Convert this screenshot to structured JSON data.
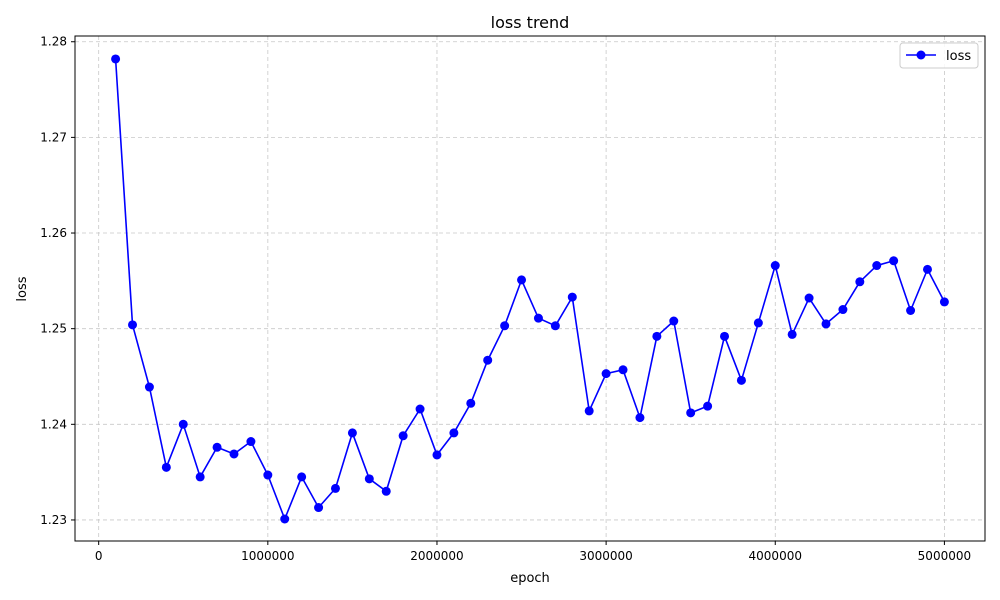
{
  "chart_data": {
    "type": "line",
    "title": "loss trend",
    "xlabel": "epoch",
    "ylabel": "loss",
    "xlim": [
      -140000,
      5240000
    ],
    "ylim": [
      1.2278,
      1.2806
    ],
    "xticks": [
      0,
      1000000,
      2000000,
      3000000,
      4000000,
      5000000
    ],
    "xtick_labels": [
      "0",
      "1000000",
      "2000000",
      "3000000",
      "4000000",
      "5000000"
    ],
    "yticks": [
      1.23,
      1.24,
      1.25,
      1.26,
      1.27,
      1.28
    ],
    "ytick_labels": [
      "1.23",
      "1.24",
      "1.25",
      "1.26",
      "1.27",
      "1.28"
    ],
    "grid": true,
    "legend_position": "top-right",
    "colors": {
      "series": "#0000ff",
      "grid": "#c8c8c8",
      "axes": "#000000"
    },
    "x": [
      100000,
      200000,
      300000,
      400000,
      500000,
      600000,
      700000,
      800000,
      900000,
      1000000,
      1100000,
      1200000,
      1300000,
      1400000,
      1500000,
      1600000,
      1700000,
      1800000,
      1900000,
      2000000,
      2100000,
      2200000,
      2300000,
      2400000,
      2500000,
      2600000,
      2700000,
      2800000,
      2900000,
      3000000,
      3100000,
      3200000,
      3300000,
      3400000,
      3500000,
      3600000,
      3700000,
      3800000,
      3900000,
      4000000,
      4100000,
      4200000,
      4300000,
      4400000,
      4500000,
      4600000,
      4700000,
      4800000,
      4900000,
      5000000
    ],
    "series": [
      {
        "name": "loss",
        "values": [
          1.2782,
          1.2504,
          1.2439,
          1.2355,
          1.24,
          1.2345,
          1.2376,
          1.2369,
          1.2382,
          1.2347,
          1.2301,
          1.2345,
          1.2313,
          1.2333,
          1.2391,
          1.2343,
          1.233,
          1.2388,
          1.2416,
          1.2368,
          1.2391,
          1.2422,
          1.2467,
          1.2503,
          1.2551,
          1.2511,
          1.2503,
          1.2533,
          1.2414,
          1.2453,
          1.2457,
          1.2407,
          1.2492,
          1.2508,
          1.2412,
          1.2419,
          1.2492,
          1.2446,
          1.2506,
          1.2566,
          1.2494,
          1.2532,
          1.2505,
          1.252,
          1.2549,
          1.2566,
          1.2571,
          1.2519,
          1.2562,
          1.2528
        ]
      }
    ]
  }
}
